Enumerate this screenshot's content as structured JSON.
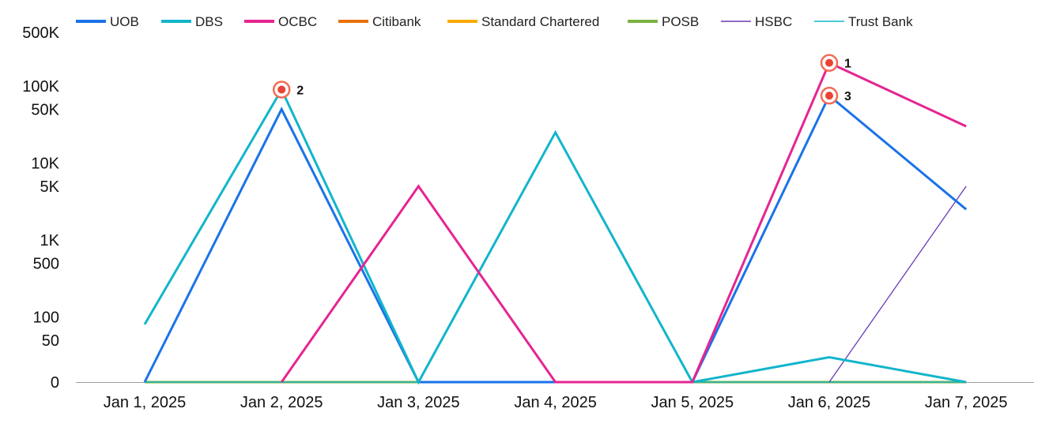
{
  "chart_data": {
    "type": "line",
    "title": "",
    "xlabel": "",
    "ylabel": "",
    "y_scale": "log-like (symlog, 0 at baseline)",
    "ylim": [
      0,
      500000
    ],
    "grid": false,
    "legend_position": "top",
    "x": [
      "Jan 1, 2025",
      "Jan 2, 2025",
      "Jan 3, 2025",
      "Jan 4, 2025",
      "Jan 5, 2025",
      "Jan 6, 2025",
      "Jan 7, 2025"
    ],
    "y_ticks": [
      {
        "value": 0,
        "label": "0"
      },
      {
        "value": 50,
        "label": "50"
      },
      {
        "value": 100,
        "label": "100"
      },
      {
        "value": 500,
        "label": "500"
      },
      {
        "value": 1000,
        "label": "1K"
      },
      {
        "value": 5000,
        "label": "5K"
      },
      {
        "value": 10000,
        "label": "10K"
      },
      {
        "value": 50000,
        "label": "50K"
      },
      {
        "value": 100000,
        "label": "100K"
      },
      {
        "value": 500000,
        "label": "500K"
      }
    ],
    "series": [
      {
        "name": "UOB",
        "color": "#1a73e8",
        "values": [
          0,
          50000,
          0,
          0,
          0,
          75000,
          2500
        ]
      },
      {
        "name": "DBS",
        "color": "#12b5cb",
        "values": [
          80,
          90000,
          0,
          25000,
          0,
          30,
          0
        ]
      },
      {
        "name": "OCBC",
        "color": "#e52592",
        "values": [
          null,
          0,
          5000,
          0,
          0,
          200000,
          30000
        ]
      },
      {
        "name": "Citibank",
        "color": "#e8710a",
        "values": [
          0,
          0,
          0,
          0,
          0,
          0,
          0
        ]
      },
      {
        "name": "Standard Chartered",
        "color": "#f9ab00",
        "values": [
          0,
          0,
          0,
          0,
          0,
          0,
          0
        ]
      },
      {
        "name": "POSB",
        "color": "#7cb342",
        "values": [
          0,
          0,
          0,
          0,
          0,
          0,
          0
        ]
      },
      {
        "name": "HSBC",
        "color": "#673ab7",
        "values": [
          null,
          null,
          null,
          null,
          null,
          0,
          5000
        ]
      },
      {
        "name": "Trust Bank",
        "color": "#12b5cb",
        "values": [
          0,
          0,
          0,
          0,
          0,
          0,
          0
        ]
      }
    ],
    "annotations": [
      {
        "label": "1",
        "x": "Jan 6, 2025",
        "y": 200000
      },
      {
        "label": "2",
        "x": "Jan 2, 2025",
        "y": 90000
      },
      {
        "label": "3",
        "x": "Jan 6, 2025",
        "y": 75000
      }
    ]
  }
}
